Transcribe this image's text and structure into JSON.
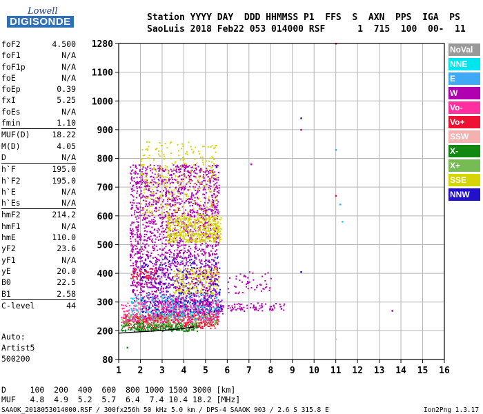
{
  "logo": {
    "line1": "Lowell",
    "line2": "DIGISONDE"
  },
  "header": {
    "line1": "Station YYYY DAY  DDD HHMMSS P1  FFS  S  AXN  PPS  IGA  PS",
    "line2": "SaoLuis 2018 Feb22 053 014000 RSF      1  715  100  00-  11"
  },
  "params": [
    {
      "name": "foF2",
      "value": "4.500"
    },
    {
      "name": "foF1",
      "value": "N/A"
    },
    {
      "name": "foF1p",
      "value": "N/A"
    },
    {
      "name": "foE",
      "value": "N/A"
    },
    {
      "name": "foEp",
      "value": "0.39"
    },
    {
      "name": "fxI",
      "value": "5.25"
    },
    {
      "name": "foEs",
      "value": "N/A"
    },
    {
      "name": "fmin",
      "value": "1.10"
    },
    {
      "name": "MUF(D)",
      "value": "18.22",
      "sep": true
    },
    {
      "name": "M(D)",
      "value": "4.05"
    },
    {
      "name": "D",
      "value": "N/A"
    },
    {
      "name": "h`F",
      "value": "195.0",
      "sep": true
    },
    {
      "name": "h`F2",
      "value": "195.0"
    },
    {
      "name": "h`E",
      "value": "N/A"
    },
    {
      "name": "h`Es",
      "value": "N/A"
    },
    {
      "name": "hmF2",
      "value": "214.2",
      "sep": true
    },
    {
      "name": "hmF1",
      "value": "N/A"
    },
    {
      "name": "hmE",
      "value": "110.0"
    },
    {
      "name": "yF2",
      "value": "23.6"
    },
    {
      "name": "yF1",
      "value": "N/A"
    },
    {
      "name": "yE",
      "value": "20.0"
    },
    {
      "name": "B0",
      "value": "22.5"
    },
    {
      "name": "B1",
      "value": "2.58"
    },
    {
      "name": "C-level",
      "value": "44",
      "sep": true
    }
  ],
  "auto": {
    "line1": "Auto:",
    "line2": "Artist5",
    "line3": "500200"
  },
  "footer": {
    "d_row": "D     100  200  400  600  800 1000 1500 3000 [km]",
    "muf_row": "MUF   4.8  4.9  5.2  5.7  6.4  7.4 10.4 18.2 [MHz]",
    "file_line": "SAAOK_2018053014000.RSF / 300fx256h 50 kHz 5.0 km / DPS-4 SAAOK 903 / 2.6 S 315.8 E",
    "version": "Ion2Png 1.3.17"
  },
  "legend": [
    {
      "label": "NoVal",
      "color": "#999999"
    },
    {
      "label": "NNE",
      "color": "#00e5ee"
    },
    {
      "label": "E",
      "color": "#3fa9f5"
    },
    {
      "label": "W",
      "color": "#b000b0"
    },
    {
      "label": "Vo-",
      "color": "#ff2fa0"
    },
    {
      "label": "Vo+",
      "color": "#ee1133"
    },
    {
      "label": "SSW",
      "color": "#f5b0b0"
    },
    {
      "label": "X-",
      "color": "#118811"
    },
    {
      "label": "X+",
      "color": "#77bb55"
    },
    {
      "label": "SSE",
      "color": "#d5d500"
    },
    {
      "label": "NNW",
      "color": "#2211cc"
    }
  ],
  "chart_data": {
    "type": "scatter",
    "title": "",
    "xlabel": "",
    "ylabel": "",
    "x_ticks": [
      "1",
      "2",
      "3",
      "4",
      "5",
      "6",
      "7",
      "8",
      "9",
      "10",
      "11",
      "12",
      "13",
      "14",
      "15",
      "16"
    ],
    "y_ticks": [
      "80",
      "200",
      "300",
      "400",
      "500",
      "600",
      "700",
      "800",
      "900",
      "1000",
      "1100",
      "1280"
    ],
    "y_tick_values": [
      80,
      200,
      300,
      400,
      500,
      600,
      700,
      800,
      900,
      1000,
      1100,
      1280
    ],
    "xlim": [
      1,
      16
    ],
    "ylim": [
      80,
      1280
    ],
    "y_scale": "nonlinear (approximately logarithmic in height)",
    "grid": true,
    "trace_line": {
      "name": "O-trace fit",
      "color": "#000000",
      "points": [
        [
          1.0,
          190
        ],
        [
          2.0,
          196
        ],
        [
          3.0,
          201
        ],
        [
          4.0,
          208
        ],
        [
          4.5,
          214
        ]
      ]
    },
    "clusters": [
      {
        "color": "#b000b0",
        "fx": [
          2.6,
          5.8
        ],
        "fy": [
          260,
          310
        ],
        "density": "high"
      },
      {
        "color": "#b000b0",
        "fx": [
          1.5,
          5.6
        ],
        "fy": [
          300,
          780
        ],
        "density": "medium"
      },
      {
        "color": "#d5d500",
        "fx": [
          3.2,
          5.7
        ],
        "fy": [
          510,
          600
        ],
        "density": "high"
      },
      {
        "color": "#d5d500",
        "fx": [
          2.0,
          5.5
        ],
        "fy": [
          600,
          860
        ],
        "density": "low"
      },
      {
        "color": "#d5d500",
        "fx": [
          3.5,
          5.6
        ],
        "fy": [
          330,
          420
        ],
        "density": "medium"
      },
      {
        "color": "#ee1133",
        "fx": [
          1.5,
          2.8
        ],
        "fy": [
          380,
          420
        ],
        "density": "medium"
      },
      {
        "color": "#ee1133",
        "fx": [
          1.2,
          5.6
        ],
        "fy": [
          210,
          260
        ],
        "density": "high"
      },
      {
        "color": "#118811",
        "fx": [
          1.1,
          4.6
        ],
        "fy": [
          200,
          230
        ],
        "density": "high"
      },
      {
        "color": "#77bb55",
        "fx": [
          1.1,
          5.5
        ],
        "fy": [
          220,
          260
        ],
        "density": "medium"
      },
      {
        "color": "#ff2fa0",
        "fx": [
          1.1,
          5.6
        ],
        "fy": [
          230,
          300
        ],
        "density": "medium"
      },
      {
        "color": "#3fa9f5",
        "fx": [
          1.5,
          5.6
        ],
        "fy": [
          240,
          320
        ],
        "density": "low"
      },
      {
        "color": "#00e5ee",
        "fx": [
          1.5,
          5.6
        ],
        "fy": [
          250,
          330
        ],
        "density": "low"
      },
      {
        "color": "#2211cc",
        "fx": [
          2.0,
          5.7
        ],
        "fy": [
          250,
          460
        ],
        "density": "low"
      },
      {
        "color": "#b000b0",
        "fx": [
          6.0,
          8.6
        ],
        "fy": [
          270,
          300
        ],
        "density": "medium"
      },
      {
        "color": "#b000b0",
        "fx": [
          6.0,
          8.0
        ],
        "fy": [
          330,
          410
        ],
        "density": "low"
      }
    ],
    "isolated_points": [
      {
        "x": 9.4,
        "y": 940,
        "color": "#2211cc"
      },
      {
        "x": 9.4,
        "y": 900,
        "color": "#b000b0"
      },
      {
        "x": 9.4,
        "y": 405,
        "color": "#2211cc"
      },
      {
        "x": 11.0,
        "y": 1280,
        "color": "#ee1133"
      },
      {
        "x": 11.0,
        "y": 830,
        "color": "#3fa9f5"
      },
      {
        "x": 11.0,
        "y": 670,
        "color": "#ee1133"
      },
      {
        "x": 11.2,
        "y": 640,
        "color": "#3fa9f5"
      },
      {
        "x": 11.3,
        "y": 580,
        "color": "#00e5ee"
      },
      {
        "x": 11.0,
        "y": 165,
        "color": "#f5b0b0"
      },
      {
        "x": 13.6,
        "y": 270,
        "color": "#b000b0"
      },
      {
        "x": 7.1,
        "y": 780,
        "color": "#b000b0"
      },
      {
        "x": 5.5,
        "y": 770,
        "color": "#2211cc"
      },
      {
        "x": 1.4,
        "y": 130,
        "color": "#118811"
      }
    ]
  }
}
